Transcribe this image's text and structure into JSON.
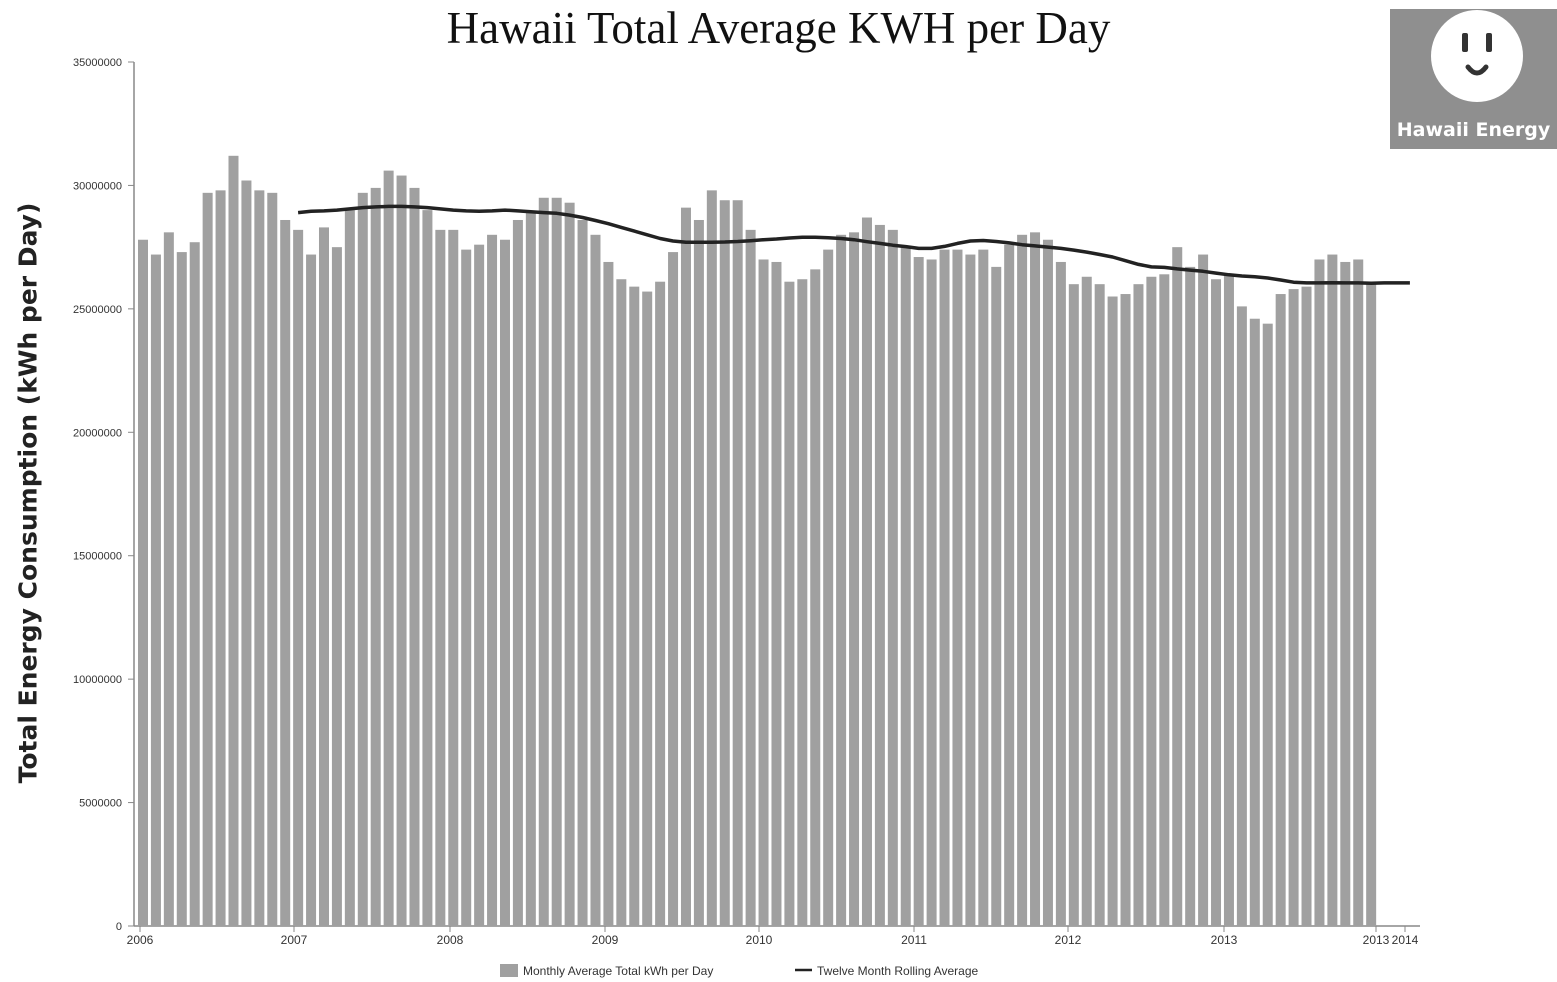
{
  "chart_data": {
    "type": "bar",
    "title": "Hawaii Total Average KWH per Day",
    "ylabel": "Total Energy Consumption (kWh per Day)",
    "xlabel": "",
    "ylim": [
      0,
      35000000
    ],
    "y_ticks": [
      "0",
      "5000000",
      "10000000",
      "15000000",
      "20000000",
      "25000000",
      "30000000",
      "35000000"
    ],
    "x_ticks": [
      "2006",
      "2007",
      "2008",
      "2009",
      "2010",
      "2011",
      "2012",
      "2013",
      "2013",
      "2014"
    ],
    "grid": false,
    "legend_position": "bottom",
    "categories_start": "2006-01",
    "series": [
      {
        "name": "Monthly Average Total kWh per Day",
        "type": "bar",
        "color": "#a0a0a0",
        "values": [
          27800000,
          27200000,
          28100000,
          27300000,
          27700000,
          29700000,
          29800000,
          31200000,
          30200000,
          29800000,
          29700000,
          28600000,
          28200000,
          27200000,
          28300000,
          27500000,
          29000000,
          29700000,
          29900000,
          30600000,
          30400000,
          29900000,
          29000000,
          28200000,
          28200000,
          27400000,
          27600000,
          28000000,
          27800000,
          28600000,
          28900000,
          29500000,
          29500000,
          29300000,
          28600000,
          28000000,
          26900000,
          26200000,
          25900000,
          25700000,
          26100000,
          27300000,
          29100000,
          28600000,
          29800000,
          29400000,
          29400000,
          28200000,
          27000000,
          26900000,
          26100000,
          26200000,
          26600000,
          27400000,
          28000000,
          28100000,
          28700000,
          28400000,
          28200000,
          27500000,
          27100000,
          27000000,
          27400000,
          27400000,
          27200000,
          27400000,
          26700000,
          27600000,
          28000000,
          28100000,
          27800000,
          26900000,
          26000000,
          26300000,
          26000000,
          25500000,
          25600000,
          26000000,
          26300000,
          26400000,
          27500000,
          26700000,
          27200000,
          26200000,
          26400000,
          25100000,
          24600000,
          24400000,
          25600000,
          25800000,
          25900000,
          27000000,
          27200000,
          26900000,
          27000000,
          26000000
        ]
      },
      {
        "name": "Twelve Month Rolling Average",
        "type": "line",
        "color": "#222222",
        "start_month": "2007-01",
        "values": [
          28900000,
          28950000,
          28970000,
          29000000,
          29050000,
          29100000,
          29130000,
          29150000,
          29150000,
          29130000,
          29100000,
          29050000,
          29000000,
          28970000,
          28950000,
          28970000,
          29000000,
          28970000,
          28930000,
          28900000,
          28870000,
          28800000,
          28700000,
          28580000,
          28450000,
          28300000,
          28150000,
          28000000,
          27850000,
          27750000,
          27700000,
          27700000,
          27700000,
          27710000,
          27730000,
          27760000,
          27800000,
          27830000,
          27870000,
          27900000,
          27900000,
          27880000,
          27850000,
          27800000,
          27720000,
          27650000,
          27580000,
          27520000,
          27450000,
          27450000,
          27530000,
          27650000,
          27750000,
          27770000,
          27730000,
          27670000,
          27600000,
          27550000,
          27500000,
          27450000,
          27380000,
          27300000,
          27200000,
          27100000,
          26950000,
          26800000,
          26700000,
          26680000,
          26620000,
          26570000,
          26520000,
          26450000,
          26380000,
          26330000,
          26300000,
          26250000,
          26170000,
          26080000,
          26050000,
          26050000,
          26060000,
          26050000,
          26050000,
          26040000,
          26050000,
          26050000,
          26050000
        ]
      }
    ]
  },
  "logo": {
    "text": "Hawaii Energy"
  }
}
